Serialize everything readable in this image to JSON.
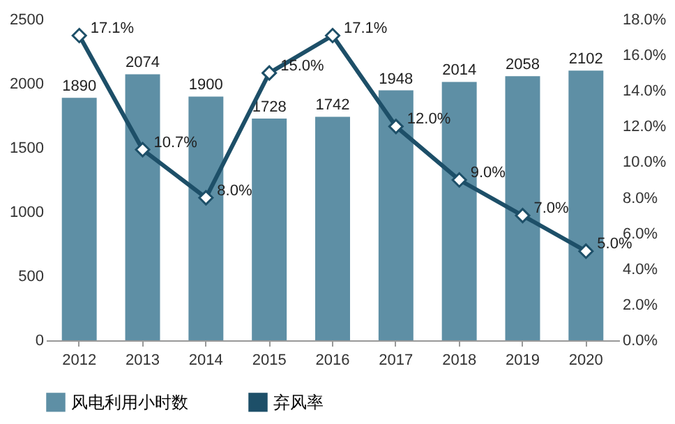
{
  "chart_data": {
    "type": "bar",
    "categories": [
      "2012",
      "2013",
      "2014",
      "2015",
      "2016",
      "2017",
      "2018",
      "2019",
      "2020"
    ],
    "series": [
      {
        "name": "风电利用小时数",
        "color": "#5e8fa5",
        "values": [
          1890,
          2074,
          1900,
          1728,
          1742,
          1948,
          2014,
          2058,
          2102
        ],
        "value_labels": [
          "1890",
          "2074",
          "1900",
          "1728",
          "1742",
          "1948",
          "2014",
          "2058",
          "2102"
        ]
      },
      {
        "name": "弃风率",
        "type": "line",
        "axis": "y2",
        "color": "#1d4f68",
        "values": [
          17.1,
          10.7,
          8.0,
          15.0,
          17.1,
          12.0,
          9.0,
          7.0,
          5.0
        ],
        "value_labels": [
          "17.1%",
          "10.7%",
          "8.0%",
          "15.0%",
          "17.1%",
          "12.0%",
          "9.0%",
          "7.0%",
          "5.0%"
        ]
      }
    ],
    "ylim": [
      0,
      2500
    ],
    "yticks": [
      0,
      500,
      1000,
      1500,
      2000,
      2500
    ],
    "y2lim": [
      0,
      18
    ],
    "y2ticks": [
      {
        "value": 0,
        "label": "0.0%"
      },
      {
        "value": 2,
        "label": "2.0%"
      },
      {
        "value": 4,
        "label": "4.0%"
      },
      {
        "value": 6,
        "label": "6.0%"
      },
      {
        "value": 8,
        "label": "8.0%"
      },
      {
        "value": 10,
        "label": "10.0%"
      },
      {
        "value": 12,
        "label": "12.0%"
      },
      {
        "value": 14,
        "label": "14.0%"
      },
      {
        "value": 16,
        "label": "16.0%"
      },
      {
        "value": 18,
        "label": "18.0%"
      }
    ],
    "legend": "bottom",
    "marker": "diamond",
    "line_style": "solid"
  }
}
